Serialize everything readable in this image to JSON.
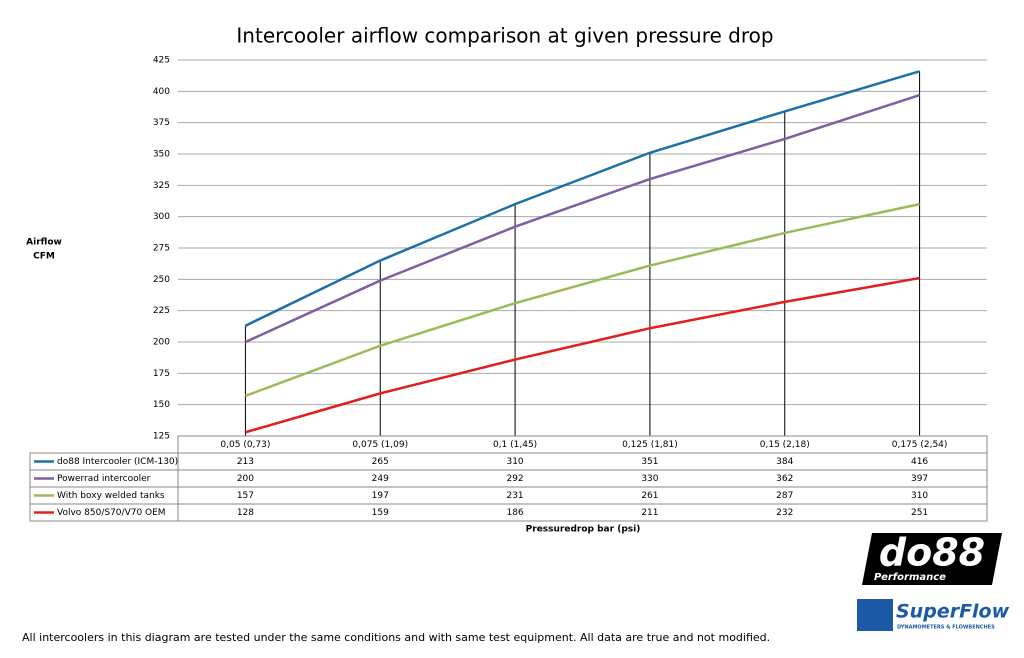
{
  "chart_data": {
    "type": "line",
    "title": "Intercooler airflow comparison at given pressure drop",
    "y_label": [
      "Airflow",
      "CFM"
    ],
    "x_label": "Pressuredrop bar (psi)",
    "categories": [
      "0,05 (0,73)",
      "0,075 (1,09)",
      "0,1 (1,45)",
      "0,125 (1,81)",
      "0,15 (2,18)",
      "0,175 (2,54)"
    ],
    "series": [
      {
        "name": "do88 Intercooler (ICM-130)",
        "color": "#1f6fa8",
        "values": [
          213,
          265,
          310,
          351,
          384,
          416
        ]
      },
      {
        "name": "Powerrad intercooler",
        "color": "#7f5fa0",
        "values": [
          200,
          249,
          292,
          330,
          362,
          397
        ]
      },
      {
        "name": "With boxy welded tanks",
        "color": "#9bbb59",
        "values": [
          157,
          197,
          231,
          261,
          287,
          310
        ]
      },
      {
        "name": "Volvo 850/S70/V70 OEM",
        "color": "#e02020",
        "values": [
          128,
          159,
          186,
          211,
          232,
          251
        ]
      }
    ],
    "ylim": [
      125,
      425
    ],
    "yticks": [
      125,
      150,
      175,
      200,
      225,
      250,
      275,
      300,
      325,
      350,
      375,
      400,
      425
    ],
    "grid": true,
    "data_table": true,
    "drop_lines": true
  },
  "footer": "All intercoolers in this diagram are tested under the same conditions and with same test equipment. All data are true and not modified.",
  "logos": {
    "do88": "do88",
    "do88_sub": "Performance",
    "superflow": "SuperFlow",
    "superflow_sub": "DYNAMOMETERS & FLOWBENCHES"
  }
}
